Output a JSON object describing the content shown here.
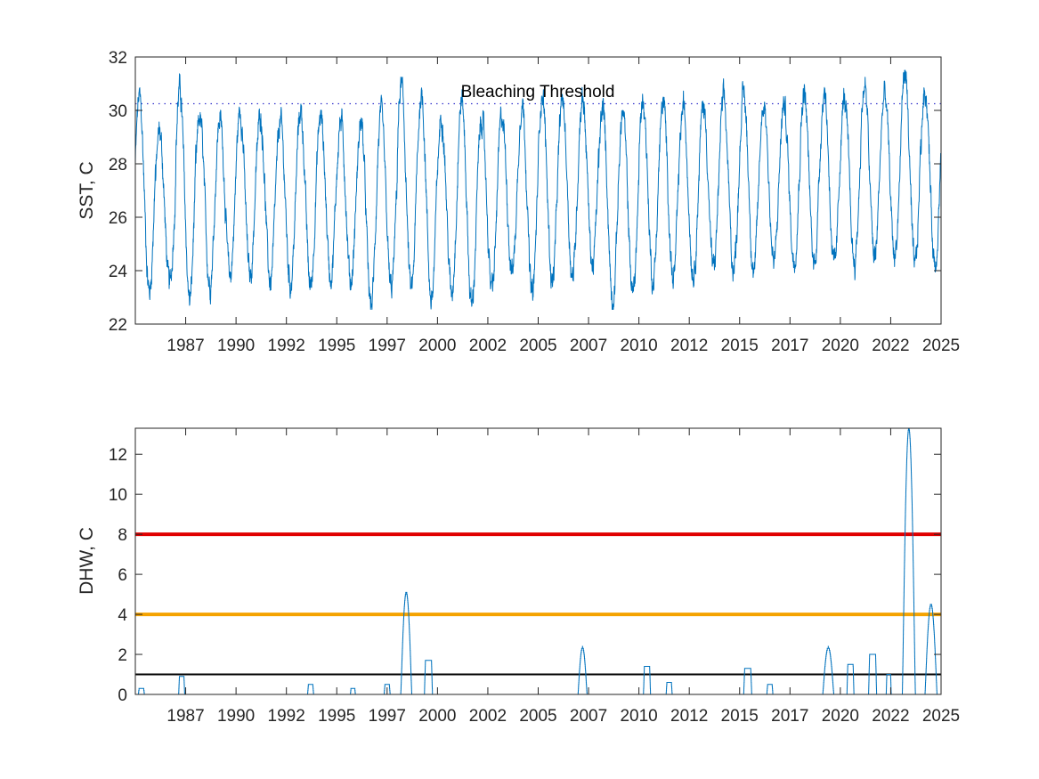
{
  "chart_data": [
    {
      "type": "line",
      "ylabel": "SST, C",
      "xlabel": "",
      "xlim": [
        1985.0,
        2025.0
      ],
      "ylim": [
        22,
        32
      ],
      "yticks": [
        22,
        24,
        26,
        28,
        30,
        32
      ],
      "xtick_labels": [
        "1987",
        "1990",
        "1992",
        "1995",
        "1997",
        "2000",
        "2002",
        "2005",
        "2007",
        "2010",
        "2012",
        "2015",
        "2017",
        "2020",
        "2022",
        "2025"
      ],
      "xtick_positions": [
        1987.5,
        1990.0,
        1992.5,
        1995.0,
        1997.5,
        2000.0,
        2002.5,
        2005.0,
        2007.5,
        2010.0,
        2012.5,
        2015.0,
        2017.5,
        2020.0,
        2022.5,
        2025.0
      ],
      "grid": false,
      "annotation": "Bleaching Threshold",
      "threshold": 30.25,
      "series_color": "#0072BD",
      "threshold_color": "#3333cc",
      "series": [
        {
          "peaks_by_year": [
            [
              1985,
              30.5
            ],
            [
              1986,
              29.2
            ],
            [
              1987,
              30.8
            ],
            [
              1988,
              29.7
            ],
            [
              1989,
              29.7
            ],
            [
              1990,
              30.0
            ],
            [
              1991,
              29.8
            ],
            [
              1992,
              29.6
            ],
            [
              1993,
              30.0
            ],
            [
              1994,
              29.8
            ],
            [
              1995,
              29.6
            ],
            [
              1996,
              29.6
            ],
            [
              1997,
              29.8
            ],
            [
              1998,
              30.9
            ],
            [
              1999,
              30.6
            ],
            [
              2000,
              29.8
            ],
            [
              2001,
              30.4
            ],
            [
              2002,
              29.7
            ],
            [
              2003,
              29.8
            ],
            [
              2004,
              30.3
            ],
            [
              2005,
              30.6
            ],
            [
              2006,
              30.4
            ],
            [
              2007,
              30.5
            ],
            [
              2008,
              30.1
            ],
            [
              2009,
              29.9
            ],
            [
              2010,
              30.4
            ],
            [
              2011,
              30.3
            ],
            [
              2012,
              30.1
            ],
            [
              2013,
              30.2
            ],
            [
              2014,
              30.4
            ],
            [
              2015,
              30.6
            ],
            [
              2016,
              30.3
            ],
            [
              2017,
              30.2
            ],
            [
              2018,
              30.7
            ],
            [
              2019,
              30.7
            ],
            [
              2020,
              30.4
            ],
            [
              2021,
              30.9
            ],
            [
              2022,
              30.6
            ],
            [
              2023,
              31.5
            ],
            [
              2024,
              30.8
            ]
          ],
          "troughs_by_year": [
            [
              1985,
              23.2
            ],
            [
              1986,
              23.5
            ],
            [
              1987,
              22.9
            ],
            [
              1988,
              23.5
            ],
            [
              1989,
              23.8
            ],
            [
              1990,
              23.8
            ],
            [
              1991,
              23.6
            ],
            [
              1992,
              23.5
            ],
            [
              1993,
              23.4
            ],
            [
              1994,
              23.8
            ],
            [
              1995,
              23.6
            ],
            [
              1996,
              22.7
            ],
            [
              1997,
              23.3
            ],
            [
              1998,
              23.2
            ],
            [
              1999,
              22.9
            ],
            [
              2000,
              23.2
            ],
            [
              2001,
              22.7
            ],
            [
              2002,
              23.3
            ],
            [
              2003,
              24.0
            ],
            [
              2004,
              23.1
            ],
            [
              2005,
              23.6
            ],
            [
              2006,
              23.8
            ],
            [
              2007,
              24.2
            ],
            [
              2008,
              22.9
            ],
            [
              2009,
              23.2
            ],
            [
              2010,
              23.6
            ],
            [
              2011,
              23.7
            ],
            [
              2012,
              23.9
            ],
            [
              2013,
              24.1
            ],
            [
              2014,
              24.1
            ],
            [
              2015,
              24.0
            ],
            [
              2016,
              24.3
            ],
            [
              2017,
              24.4
            ],
            [
              2018,
              24.3
            ],
            [
              2019,
              24.1
            ],
            [
              2020,
              24.3
            ],
            [
              2021,
              24.5
            ],
            [
              2022,
              24.6
            ],
            [
              2023,
              24.1
            ],
            [
              2024,
              24.3
            ]
          ]
        }
      ]
    },
    {
      "type": "line",
      "ylabel": "DHW, C",
      "xlabel": "",
      "xlim": [
        1985.0,
        2025.0
      ],
      "ylim": [
        0,
        13.3
      ],
      "yticks": [
        0,
        2,
        4,
        6,
        8,
        10,
        12
      ],
      "xtick_labels": [
        "1987",
        "1990",
        "1992",
        "1995",
        "1997",
        "2000",
        "2002",
        "2005",
        "2007",
        "2010",
        "2012",
        "2015",
        "2017",
        "2020",
        "2022",
        "2025"
      ],
      "xtick_positions": [
        1987.5,
        1990.0,
        1992.5,
        1995.0,
        1997.5,
        2000.0,
        2002.5,
        2005.0,
        2007.5,
        2010.0,
        2012.5,
        2015.0,
        2017.5,
        2020.0,
        2022.5,
        2025.0
      ],
      "grid": false,
      "series_color": "#0072BD",
      "reference_lines": [
        {
          "value": 1,
          "color": "#000000"
        },
        {
          "value": 4,
          "color": "#F5A300"
        },
        {
          "value": 8,
          "color": "#E00000"
        }
      ],
      "series": [
        {
          "events": [
            [
              1985.3,
              0.3,
              0.3
            ],
            [
              1987.3,
              0.9,
              0.3
            ],
            [
              1993.7,
              0.45,
              0.3
            ],
            [
              1995.8,
              0.3,
              0.25
            ],
            [
              1997.5,
              0.45,
              0.3
            ],
            [
              1998.45,
              5.1,
              0.55
            ],
            [
              1999.55,
              1.7,
              0.4
            ],
            [
              2007.2,
              2.35,
              0.45
            ],
            [
              2010.4,
              1.4,
              0.35
            ],
            [
              2011.5,
              0.6,
              0.3
            ],
            [
              2015.4,
              1.3,
              0.4
            ],
            [
              2016.5,
              0.5,
              0.3
            ],
            [
              2019.4,
              2.35,
              0.55
            ],
            [
              2020.5,
              1.5,
              0.35
            ],
            [
              2021.6,
              1.95,
              0.4
            ],
            [
              2022.4,
              1.0,
              0.25
            ],
            [
              2023.4,
              13.3,
              0.65
            ],
            [
              2024.5,
              4.5,
              0.6
            ]
          ]
        }
      ]
    }
  ]
}
